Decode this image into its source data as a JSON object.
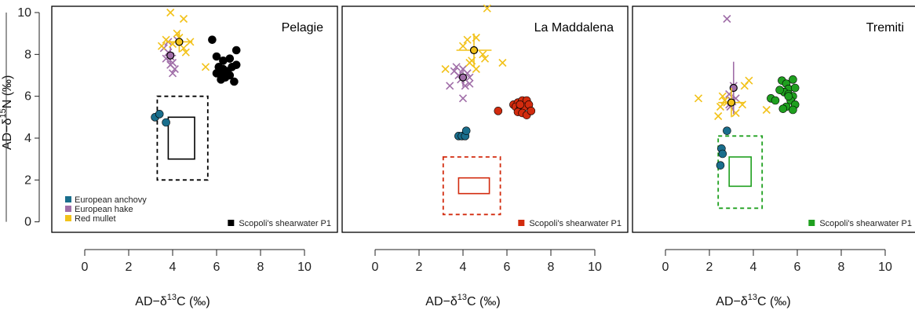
{
  "chart_data": [
    {
      "type": "scatter",
      "panel": "Pelagie",
      "title": "Pelagie",
      "xlabel": "AD−δ13C (‰)",
      "ylabel": "AD−δ15N (‰)",
      "xlim": [
        -1.5,
        11.5
      ],
      "ylim": [
        -0.5,
        10.3
      ],
      "xticks": [
        0,
        2,
        4,
        6,
        8,
        10
      ],
      "yticks": [
        0,
        2,
        4,
        6,
        8,
        10
      ],
      "legend": [
        {
          "label": "European anchovy",
          "color": "#1a6e8c"
        },
        {
          "label": "European hake",
          "color": "#a06ea8"
        },
        {
          "label": "Red mullet",
          "color": "#f2c21a"
        }
      ],
      "legend_placement": "bottom-left",
      "bird_legend": {
        "label": "Scopoli's shearwater P1",
        "color": "#000000"
      },
      "bird_color": "#000000",
      "series": [
        {
          "name": "European anchovy",
          "marker": "circle",
          "color": "#1a6e8c",
          "points": [
            [
              3.2,
              5.0
            ],
            [
              3.4,
              5.15
            ],
            [
              3.7,
              4.75
            ]
          ]
        },
        {
          "name": "European hake",
          "marker": "cross",
          "color": "#a06ea8",
          "points": [
            [
              3.6,
              8.3
            ],
            [
              3.8,
              8.1
            ],
            [
              3.9,
              7.9
            ],
            [
              4.0,
              7.6
            ],
            [
              3.7,
              7.8
            ],
            [
              4.1,
              7.3
            ],
            [
              4.0,
              7.1
            ],
            [
              3.8,
              8.6
            ],
            [
              4.2,
              8.7
            ],
            [
              3.9,
              7.5
            ]
          ]
        },
        {
          "name": "Red mullet",
          "marker": "cross",
          "color": "#f2c21a",
          "points": [
            [
              3.9,
              10.0
            ],
            [
              4.5,
              9.7
            ],
            [
              4.2,
              9.0
            ],
            [
              3.7,
              8.7
            ],
            [
              4.0,
              8.5
            ],
            [
              4.5,
              8.3
            ],
            [
              4.8,
              8.6
            ],
            [
              3.5,
              8.4
            ],
            [
              4.6,
              8.1
            ],
            [
              5.5,
              7.4
            ],
            [
              4.3,
              8.8
            ]
          ]
        },
        {
          "name": "Scopoli's shearwater P1",
          "marker": "circle",
          "color": "#000000",
          "points": [
            [
              5.8,
              8.7
            ],
            [
              6.0,
              7.9
            ],
            [
              6.3,
              7.7
            ],
            [
              6.6,
              7.8
            ],
            [
              6.9,
              8.2
            ],
            [
              6.1,
              7.4
            ],
            [
              6.3,
              7.3
            ],
            [
              6.5,
              7.2
            ],
            [
              6.7,
              7.4
            ],
            [
              6.9,
              7.5
            ],
            [
              6.2,
              7.0
            ],
            [
              6.4,
              6.9
            ],
            [
              6.6,
              7.0
            ],
            [
              6.8,
              6.7
            ],
            [
              6.0,
              7.1
            ],
            [
              6.4,
              7.2
            ],
            [
              6.2,
              6.8
            ]
          ]
        }
      ],
      "means": [
        {
          "name": "European hake",
          "x": 3.9,
          "y": 7.95,
          "color": "#a06ea8",
          "xerr": 0.25,
          "yerr": 0.4
        },
        {
          "name": "Red mullet",
          "x": 4.3,
          "y": 8.6,
          "color": "#f2c21a",
          "xerr": 0.6,
          "yerr": 0.5
        }
      ],
      "inner_rect": {
        "x0": 3.8,
        "x1": 5.0,
        "y0": 3.0,
        "y1": 5.0
      },
      "outer_rect": {
        "x0": 3.3,
        "x1": 5.6,
        "y0": 2.0,
        "y1": 6.0
      }
    },
    {
      "type": "scatter",
      "panel": "La Maddalena",
      "title": "La Maddalena",
      "xlabel": "AD−δ13C (‰)",
      "xlim": [
        -1.5,
        11.5
      ],
      "ylim": [
        -0.5,
        10.3
      ],
      "xticks": [
        0,
        2,
        4,
        6,
        8,
        10
      ],
      "bird_legend": {
        "label": "Scopoli's shearwater P1",
        "color": "#d22b0e"
      },
      "bird_color": "#d22b0e",
      "series": [
        {
          "name": "European anchovy",
          "marker": "circle",
          "color": "#1a6e8c",
          "points": [
            [
              3.8,
              4.1
            ],
            [
              3.95,
              4.1
            ],
            [
              4.1,
              4.1
            ],
            [
              4.15,
              4.35
            ]
          ]
        },
        {
          "name": "European hake",
          "marker": "cross",
          "color": "#a06ea8",
          "points": [
            [
              3.6,
              7.2
            ],
            [
              3.8,
              7.0
            ],
            [
              4.0,
              7.3
            ],
            [
              4.3,
              6.9
            ],
            [
              3.9,
              6.8
            ],
            [
              4.1,
              6.5
            ],
            [
              4.3,
              6.6
            ],
            [
              3.4,
              6.5
            ],
            [
              4.0,
              5.9
            ],
            [
              3.7,
              7.4
            ],
            [
              4.2,
              7.1
            ]
          ]
        },
        {
          "name": "Red mullet",
          "marker": "cross",
          "color": "#f2c21a",
          "points": [
            [
              5.1,
              10.2
            ],
            [
              4.2,
              8.7
            ],
            [
              4.6,
              8.8
            ],
            [
              4.0,
              8.4
            ],
            [
              4.9,
              8.0
            ],
            [
              4.3,
              7.6
            ],
            [
              5.8,
              7.6
            ],
            [
              3.2,
              7.3
            ],
            [
              4.6,
              7.3
            ],
            [
              4.4,
              7.7
            ],
            [
              5.0,
              7.8
            ]
          ]
        },
        {
          "name": "Scopoli's shearwater P1",
          "marker": "circle",
          "color": "#d22b0e",
          "points": [
            [
              5.6,
              5.3
            ],
            [
              6.3,
              5.6
            ],
            [
              6.5,
              5.7
            ],
            [
              6.7,
              5.8
            ],
            [
              6.9,
              5.8
            ],
            [
              6.4,
              5.5
            ],
            [
              6.6,
              5.4
            ],
            [
              6.8,
              5.5
            ],
            [
              7.0,
              5.6
            ],
            [
              6.5,
              5.25
            ],
            [
              6.7,
              5.2
            ],
            [
              6.9,
              5.1
            ],
            [
              7.1,
              5.3
            ],
            [
              6.6,
              5.6
            ]
          ]
        }
      ],
      "means": [
        {
          "name": "European hake",
          "x": 4.0,
          "y": 6.9,
          "color": "#a06ea8",
          "xerr": 0.2,
          "yerr": 0.45
        },
        {
          "name": "Red mullet",
          "x": 4.5,
          "y": 8.2,
          "color": "#f2c21a",
          "xerr": 0.8,
          "yerr": 0.8
        }
      ],
      "inner_rect": {
        "x0": 3.8,
        "x1": 5.2,
        "y0": 1.35,
        "y1": 2.1
      },
      "outer_rect": {
        "x0": 3.1,
        "x1": 5.7,
        "y0": 0.35,
        "y1": 3.1
      }
    },
    {
      "type": "scatter",
      "panel": "Tremiti",
      "title": "Tremiti",
      "xlabel": "AD−δ13C (‰)",
      "xlim": [
        -1.5,
        11.5
      ],
      "ylim": [
        -0.5,
        10.3
      ],
      "xticks": [
        0,
        2,
        4,
        6,
        8,
        10
      ],
      "bird_legend": {
        "label": "Scopoli's shearwater P1",
        "color": "#1fa01f"
      },
      "bird_color": "#1fa01f",
      "series": [
        {
          "name": "European anchovy",
          "marker": "circle",
          "color": "#1a6e8c",
          "points": [
            [
              2.8,
              4.35
            ],
            [
              2.55,
              3.5
            ],
            [
              2.6,
              3.25
            ],
            [
              2.5,
              2.7
            ]
          ]
        },
        {
          "name": "European hake",
          "marker": "cross",
          "color": "#a06ea8",
          "points": [
            [
              2.8,
              9.7
            ],
            [
              3.1,
              6.5
            ],
            [
              2.9,
              6.1
            ],
            [
              3.0,
              5.8
            ],
            [
              3.2,
              5.9
            ],
            [
              2.9,
              5.6
            ],
            [
              3.05,
              5.75
            ],
            [
              2.95,
              5.5
            ]
          ]
        },
        {
          "name": "Red mullet",
          "marker": "cross",
          "color": "#f2c21a",
          "points": [
            [
              1.5,
              5.9
            ],
            [
              2.6,
              6.0
            ],
            [
              2.8,
              5.7
            ],
            [
              2.5,
              5.5
            ],
            [
              2.4,
              5.05
            ],
            [
              3.2,
              5.2
            ],
            [
              3.5,
              5.6
            ],
            [
              3.6,
              6.5
            ],
            [
              3.8,
              6.75
            ],
            [
              4.6,
              5.35
            ],
            [
              2.7,
              5.8
            ]
          ]
        },
        {
          "name": "Scopoli's shearwater P1",
          "marker": "circle",
          "color": "#1fa01f",
          "points": [
            [
              5.3,
              6.75
            ],
            [
              5.5,
              6.6
            ],
            [
              5.8,
              6.8
            ],
            [
              5.6,
              6.35
            ],
            [
              5.9,
              6.4
            ],
            [
              5.4,
              6.2
            ],
            [
              5.2,
              6.3
            ],
            [
              5.6,
              6.1
            ],
            [
              5.8,
              6.0
            ],
            [
              5.7,
              5.8
            ],
            [
              4.8,
              5.9
            ],
            [
              5.0,
              5.8
            ],
            [
              5.9,
              5.6
            ],
            [
              5.5,
              5.5
            ],
            [
              5.35,
              5.4
            ],
            [
              5.8,
              5.35
            ],
            [
              5.6,
              6.0
            ]
          ]
        }
      ],
      "means": [
        {
          "name": "European hake",
          "x": 3.1,
          "y": 6.4,
          "color": "#a06ea8",
          "xerr": 0.15,
          "yerr": 1.25
        },
        {
          "name": "Red mullet",
          "x": 3.0,
          "y": 5.7,
          "color": "#f2c21a",
          "xerr": 0.6,
          "yerr": 0.7
        }
      ],
      "inner_rect": {
        "x0": 2.9,
        "x1": 3.9,
        "y0": 1.7,
        "y1": 3.1
      },
      "outer_rect": {
        "x0": 2.4,
        "x1": 4.4,
        "y0": 0.65,
        "y1": 4.1
      }
    }
  ]
}
